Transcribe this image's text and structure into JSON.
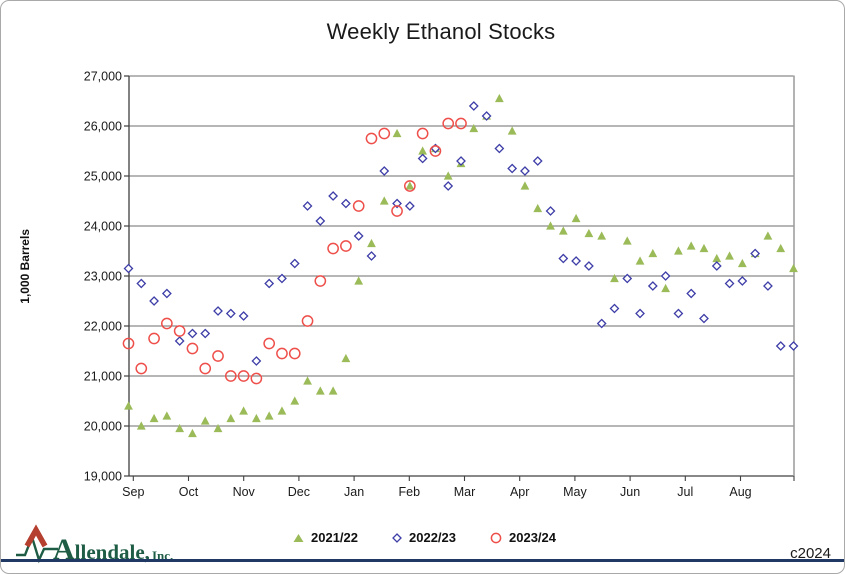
{
  "title": "Weekly Ethanol Stocks",
  "y_axis_label": "1,000 Barrels",
  "footer": {
    "brand_name": "Allendale,",
    "brand_suffix": "Inc.",
    "copyright": "c2024"
  },
  "chart_data": {
    "type": "scatter",
    "title": "Weekly Ethanol Stocks",
    "ylabel": "1,000 Barrels",
    "ylim": [
      19000,
      27000
    ],
    "y_tick_step": 1000,
    "y_tick_labels": [
      "19,000",
      "20,000",
      "21,000",
      "22,000",
      "23,000",
      "24,000",
      "25,000",
      "26,000",
      "27,000"
    ],
    "x_tick_labels": [
      "Sep",
      "Oct",
      "Nov",
      "Dec",
      "Jan",
      "Feb",
      "Mar",
      "Apr",
      "May",
      "Jun",
      "Jul",
      "Aug"
    ],
    "x_unit": "week",
    "weeks_span": 53,
    "grid": "horizontal",
    "legend_position": "bottom",
    "series": [
      {
        "name": "2021/22",
        "marker": "triangle",
        "color": "#9bbb59",
        "values": [
          20400,
          20000,
          20150,
          20200,
          19950,
          19850,
          20100,
          19950,
          20150,
          20300,
          20150,
          20200,
          20300,
          20500,
          20900,
          20700,
          20700,
          21350,
          22900,
          23650,
          24500,
          25850,
          24800,
          25500,
          25550,
          25000,
          25250,
          25950,
          26200,
          26550,
          25900,
          24800,
          24350,
          24000,
          23900,
          24150,
          23850,
          23800,
          22950,
          23700,
          23300,
          23450,
          22750,
          23500,
          23600,
          23550,
          23350,
          23400,
          23250,
          23450,
          23800,
          23550,
          23150
        ]
      },
      {
        "name": "2022/23",
        "marker": "diamond",
        "color": "#3e3ea8",
        "values": [
          23150,
          22850,
          22500,
          22650,
          21700,
          21850,
          21850,
          22300,
          22250,
          22200,
          21300,
          22850,
          22950,
          23250,
          24400,
          24100,
          24600,
          24450,
          23800,
          23400,
          25100,
          24450,
          24400,
          25350,
          25550,
          24800,
          25300,
          26400,
          26200,
          25550,
          25150,
          25100,
          25300,
          24300,
          23350,
          23300,
          23200,
          22050,
          22350,
          22950,
          22250,
          22800,
          23000,
          22250,
          22650,
          22150,
          23200,
          22850,
          22900,
          23450,
          22800,
          21600,
          21600
        ]
      },
      {
        "name": "2023/24",
        "marker": "circle",
        "color": "#ee4f4a",
        "values": [
          21650,
          21150,
          21750,
          22050,
          21900,
          21550,
          21150,
          21400,
          21000,
          21000,
          20950,
          21650,
          21450,
          21450,
          22100,
          22900,
          23550,
          23600,
          24400,
          25750,
          25850,
          24300,
          24800,
          25850,
          25500,
          26050,
          26050
        ]
      }
    ]
  }
}
